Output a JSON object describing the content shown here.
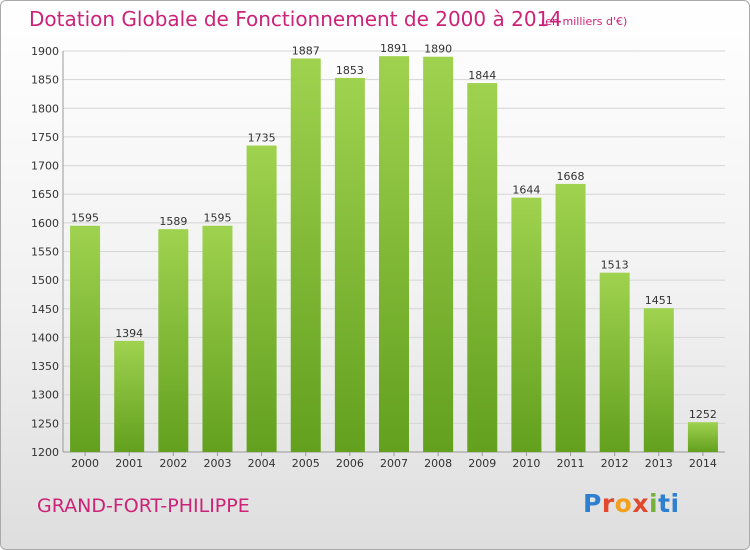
{
  "header": {
    "title": "Dotation Globale de Fonctionnement de 2000 à 2014",
    "subtitle": "(en milliers d'€)"
  },
  "footer": {
    "commune": "GRAND-FORT-PHILIPPE",
    "logo_letters": [
      "P",
      "r",
      "o",
      "x",
      "i",
      "ti"
    ]
  },
  "colors": {
    "bar_top": "#9fd24f",
    "bar_bottom": "#62a01e",
    "text_accent": "#cc2277"
  },
  "chart_data": {
    "type": "bar",
    "title": "Dotation Globale de Fonctionnement de 2000 à 2014",
    "subtitle": "(en milliers d'€)",
    "categories": [
      "2000",
      "2001",
      "2002",
      "2003",
      "2004",
      "2005",
      "2006",
      "2007",
      "2008",
      "2009",
      "2010",
      "2011",
      "2012",
      "2013",
      "2014"
    ],
    "values": [
      1595,
      1394,
      1589,
      1595,
      1735,
      1887,
      1853,
      1891,
      1890,
      1844,
      1644,
      1668,
      1513,
      1451,
      1252
    ],
    "ylim": [
      1200,
      1900
    ],
    "yticks": [
      1200,
      1250,
      1300,
      1350,
      1400,
      1450,
      1500,
      1550,
      1600,
      1650,
      1700,
      1750,
      1800,
      1850,
      1900
    ],
    "xlabel": "",
    "ylabel": "",
    "grid": true,
    "legend": "none"
  }
}
